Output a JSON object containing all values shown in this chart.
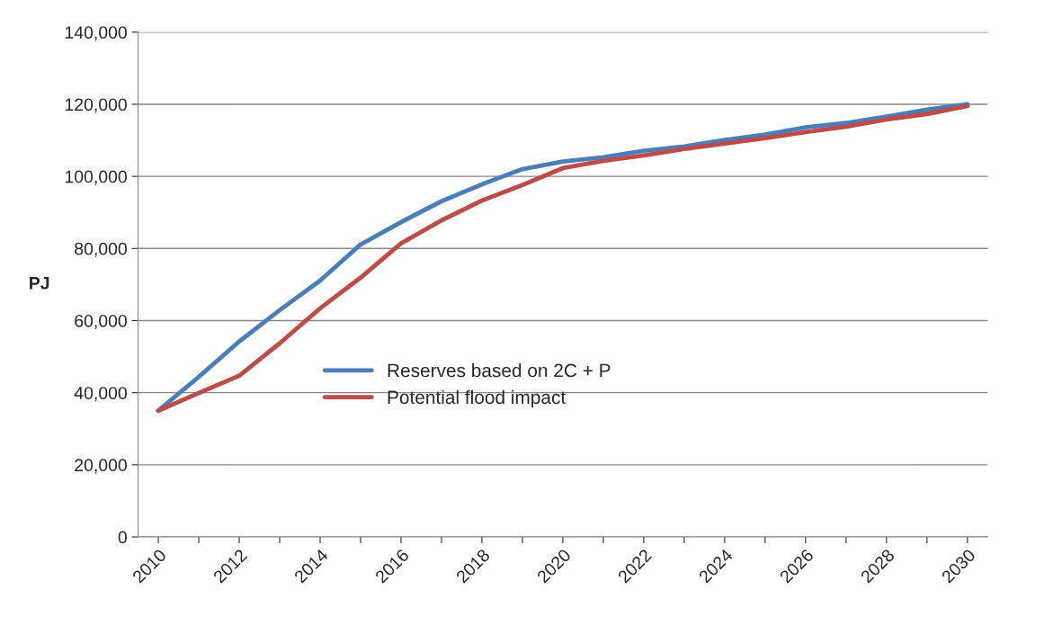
{
  "chart_data": {
    "type": "line",
    "ylabel": "PJ",
    "categories": [
      "2010",
      null,
      "2012",
      null,
      "2014",
      null,
      "2016",
      null,
      "2018",
      null,
      "2020",
      null,
      "2022",
      null,
      "2024",
      null,
      "2026",
      null,
      "2028",
      null,
      "2030"
    ],
    "series": [
      {
        "name": "Reserves based on 2C + P",
        "color": "#4a7ebb",
        "values": [
          35000,
          44400,
          54200,
          62900,
          71100,
          81100,
          87300,
          93100,
          97800,
          102000,
          104100,
          105300,
          107100,
          108300,
          110100,
          111600,
          113600,
          114800,
          116600,
          118500,
          120000
        ]
      },
      {
        "name": "Potential flood impact",
        "color": "#be4b48",
        "values": [
          35000,
          39900,
          44700,
          53700,
          63400,
          71900,
          81400,
          87800,
          93300,
          97600,
          102300,
          104300,
          105800,
          107600,
          109100,
          110600,
          112300,
          113800,
          115800,
          117300,
          119500
        ]
      }
    ],
    "ylim": [
      0,
      140000
    ],
    "yticks": [
      {
        "value": 0,
        "label": "0"
      },
      {
        "value": 20000,
        "label": "20,000"
      },
      {
        "value": 40000,
        "label": "40,000"
      },
      {
        "value": 60000,
        "label": "60,000"
      },
      {
        "value": 80000,
        "label": "80,000"
      },
      {
        "value": 100000,
        "label": "100,000"
      },
      {
        "value": 120000,
        "label": "120,000"
      },
      {
        "value": 140000,
        "label": "140,000"
      }
    ],
    "grid": "y",
    "legend": "center left",
    "marker": "none",
    "line_style": "solid"
  }
}
